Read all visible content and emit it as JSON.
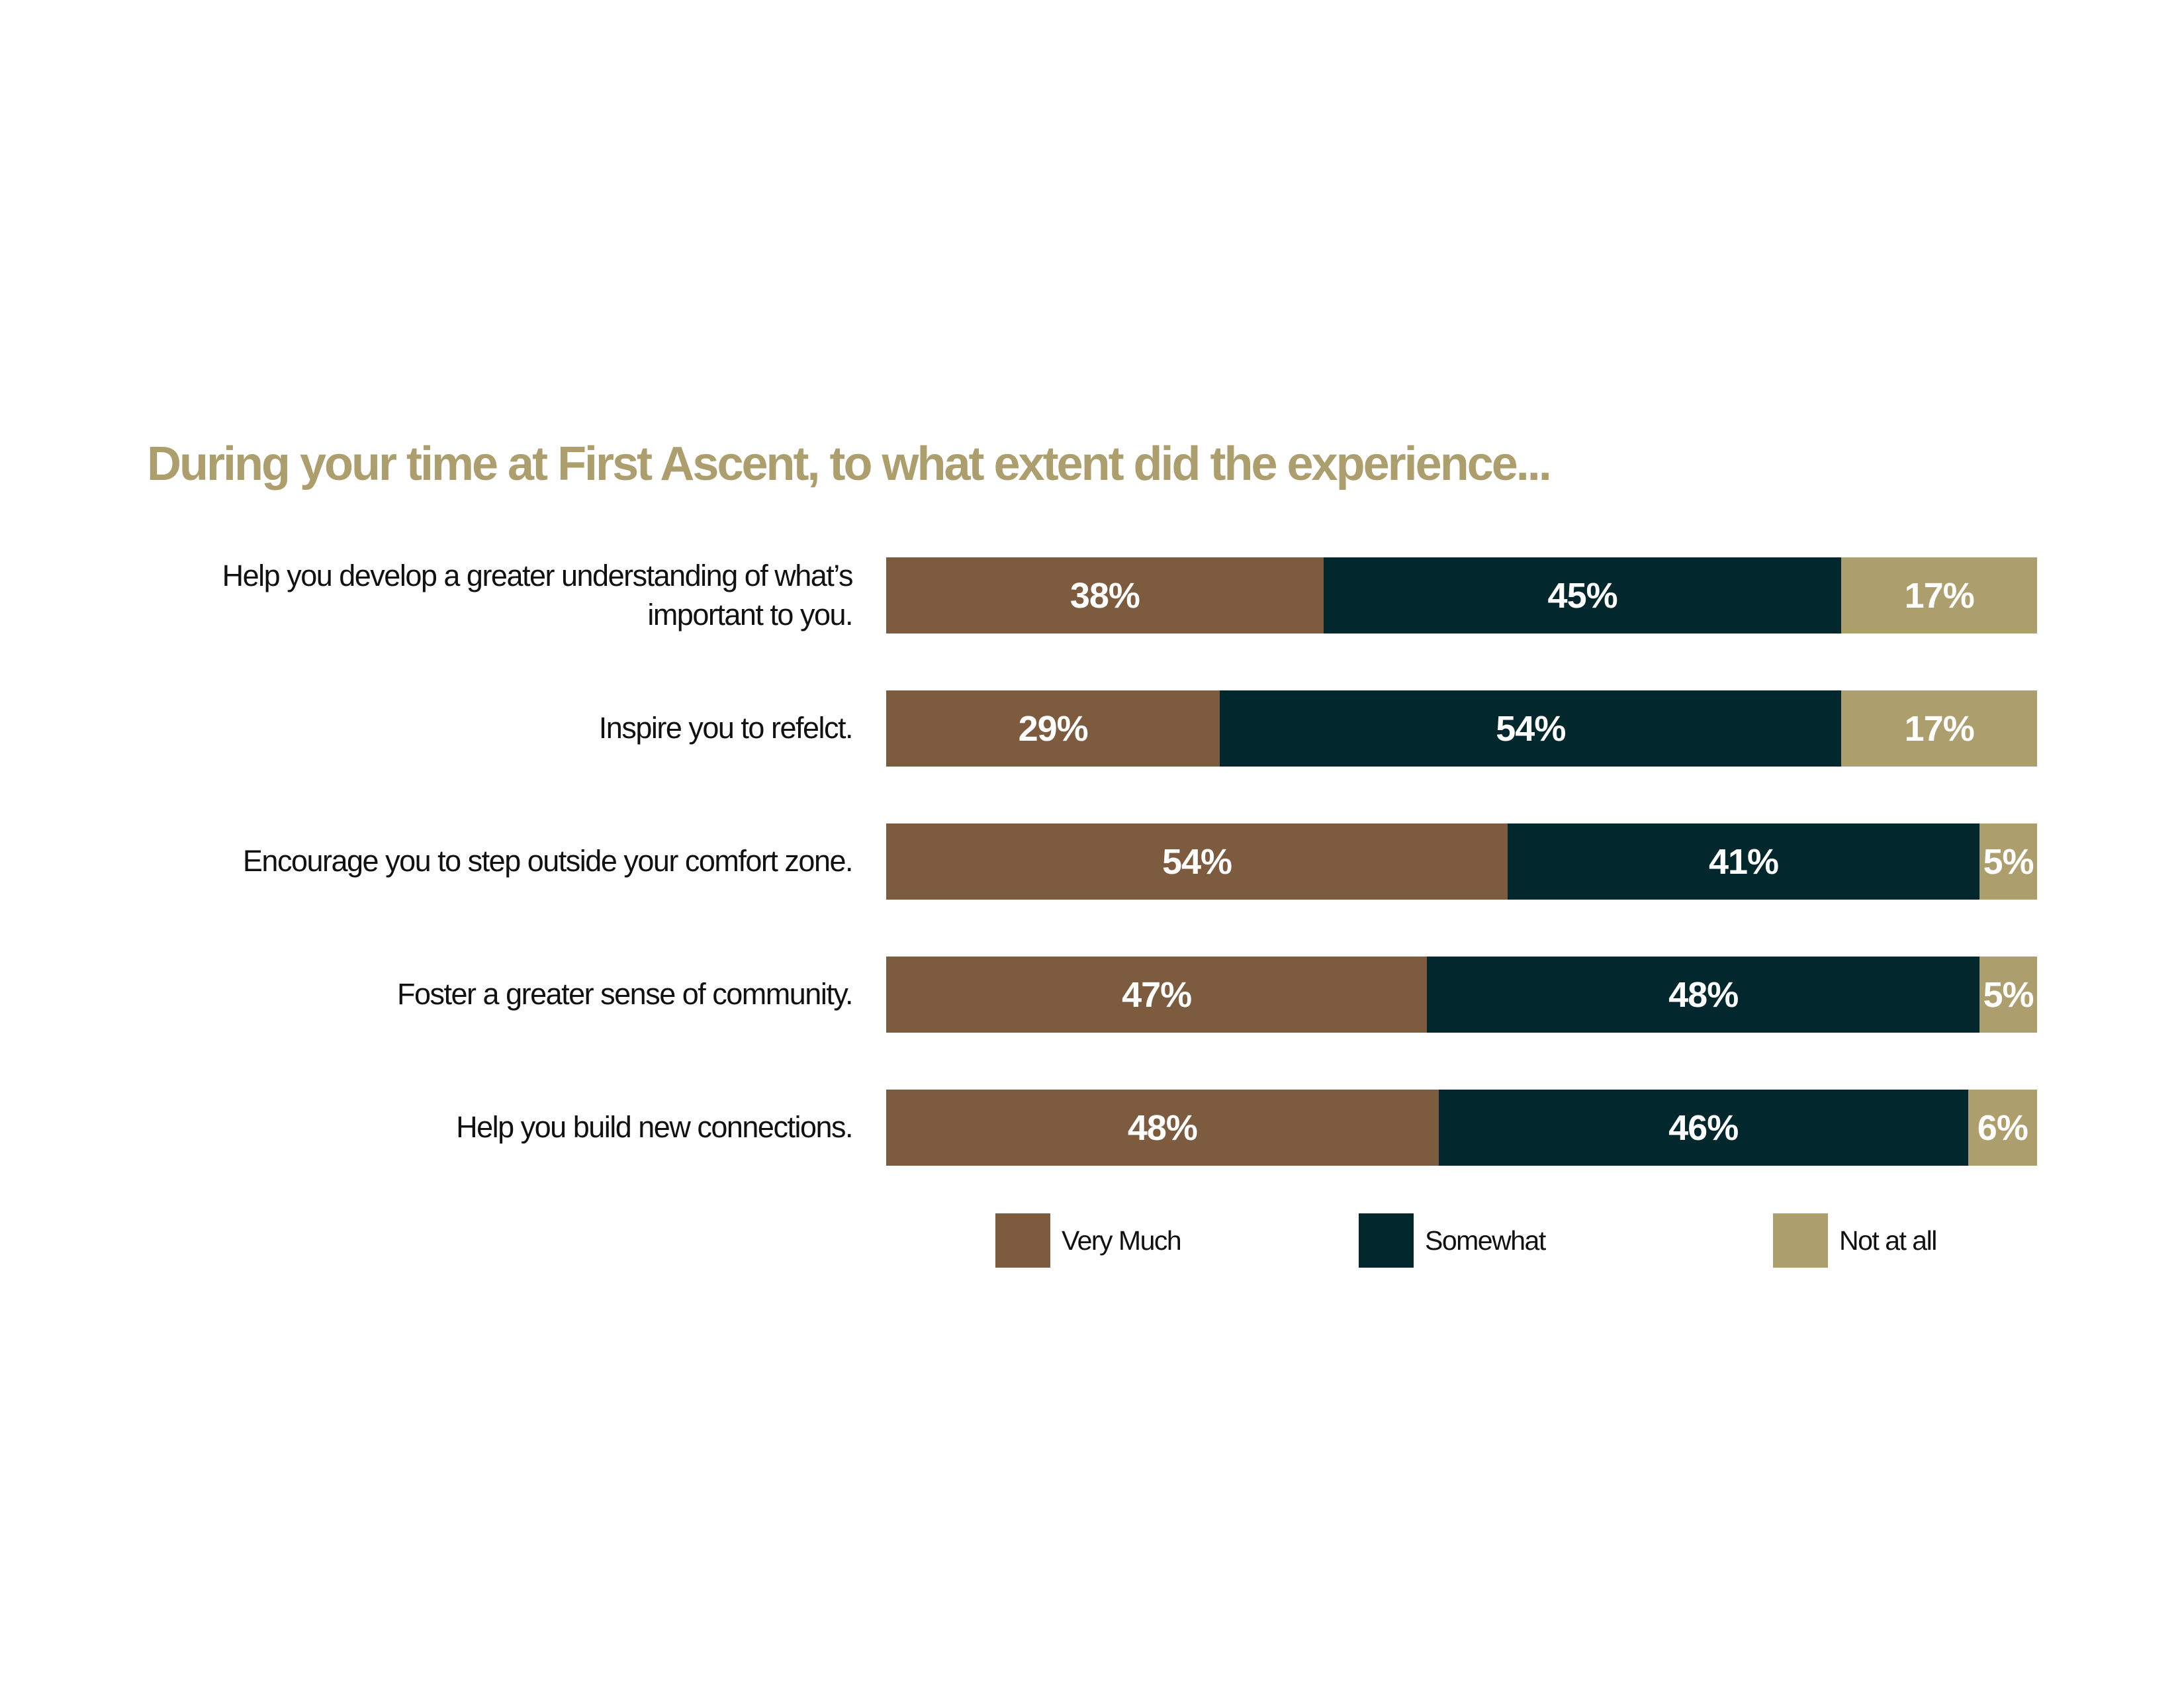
{
  "chart_data": {
    "type": "stacked-bar-horizontal",
    "title": "During your time at First Ascent, to what extent did the experience...",
    "categories": [
      "Help you develop a greater understanding of what’s important to you.",
      "Inspire you to refelct.",
      "Encourage you to step outside your comfort zone.",
      "Foster a greater sense of community.",
      "Help you build new connections."
    ],
    "series": [
      {
        "name": "Very Much",
        "color": "#7d5b3f",
        "values": [
          38,
          29,
          54,
          47,
          48
        ],
        "value_labels": [
          "38%",
          "29%",
          "54%",
          "47%",
          "48%"
        ]
      },
      {
        "name": "Somewhat",
        "color": "#02272c",
        "values": [
          45,
          54,
          41,
          48,
          46
        ],
        "value_labels": [
          "45%",
          "54%",
          "41%",
          "48%",
          "46%"
        ]
      },
      {
        "name": "Not at all",
        "color": "#ad9e6d",
        "values": [
          17,
          17,
          5,
          5,
          6
        ],
        "value_labels": [
          "17%",
          "17%",
          "5%",
          "5%",
          "6%"
        ]
      }
    ]
  }
}
